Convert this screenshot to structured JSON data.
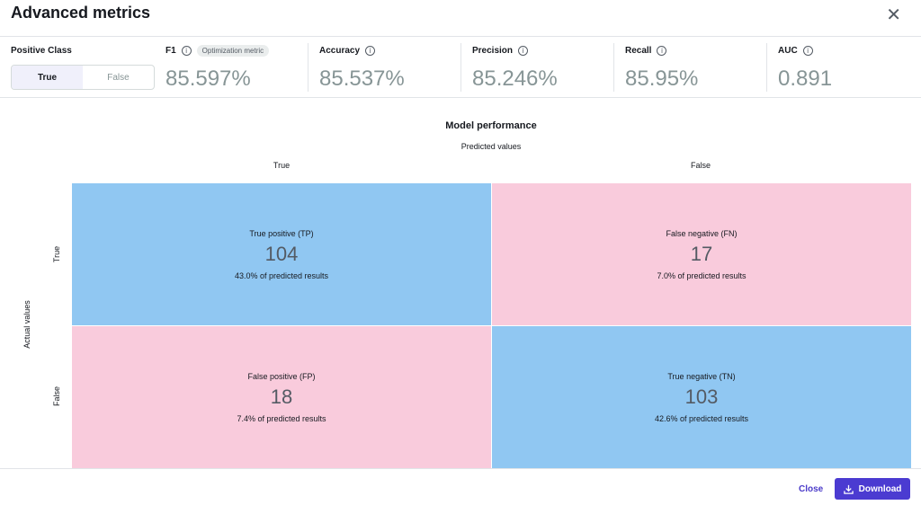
{
  "title": "Advanced metrics",
  "positive_class": {
    "label": "Positive Class",
    "options": [
      "True",
      "False"
    ],
    "selected": "True"
  },
  "metrics": [
    {
      "label": "F1",
      "value": "85.597%",
      "badge": "Optimization metric"
    },
    {
      "label": "Accuracy",
      "value": "85.537%"
    },
    {
      "label": "Precision",
      "value": "85.246%"
    },
    {
      "label": "Recall",
      "value": "85.95%"
    },
    {
      "label": "AUC",
      "value": "0.891"
    }
  ],
  "matrix": {
    "title": "Model performance",
    "x_title": "Predicted values",
    "y_title": "Actual values",
    "col_labels": [
      "True",
      "False"
    ],
    "row_labels": [
      "True",
      "False"
    ],
    "cells": [
      {
        "name": "True positive (TP)",
        "count": "104",
        "pct": "43.0% of predicted results"
      },
      {
        "name": "False negative (FN)",
        "count": "17",
        "pct": "7.0% of predicted results"
      },
      {
        "name": "False positive (FP)",
        "count": "18",
        "pct": "7.4% of predicted results"
      },
      {
        "name": "True negative (TN)",
        "count": "103",
        "pct": "42.6% of predicted results"
      }
    ],
    "colors": {
      "correct": "#90c7f2",
      "incorrect": "#f9cbdc"
    }
  },
  "footer": {
    "close": "Close",
    "download": "Download"
  }
}
